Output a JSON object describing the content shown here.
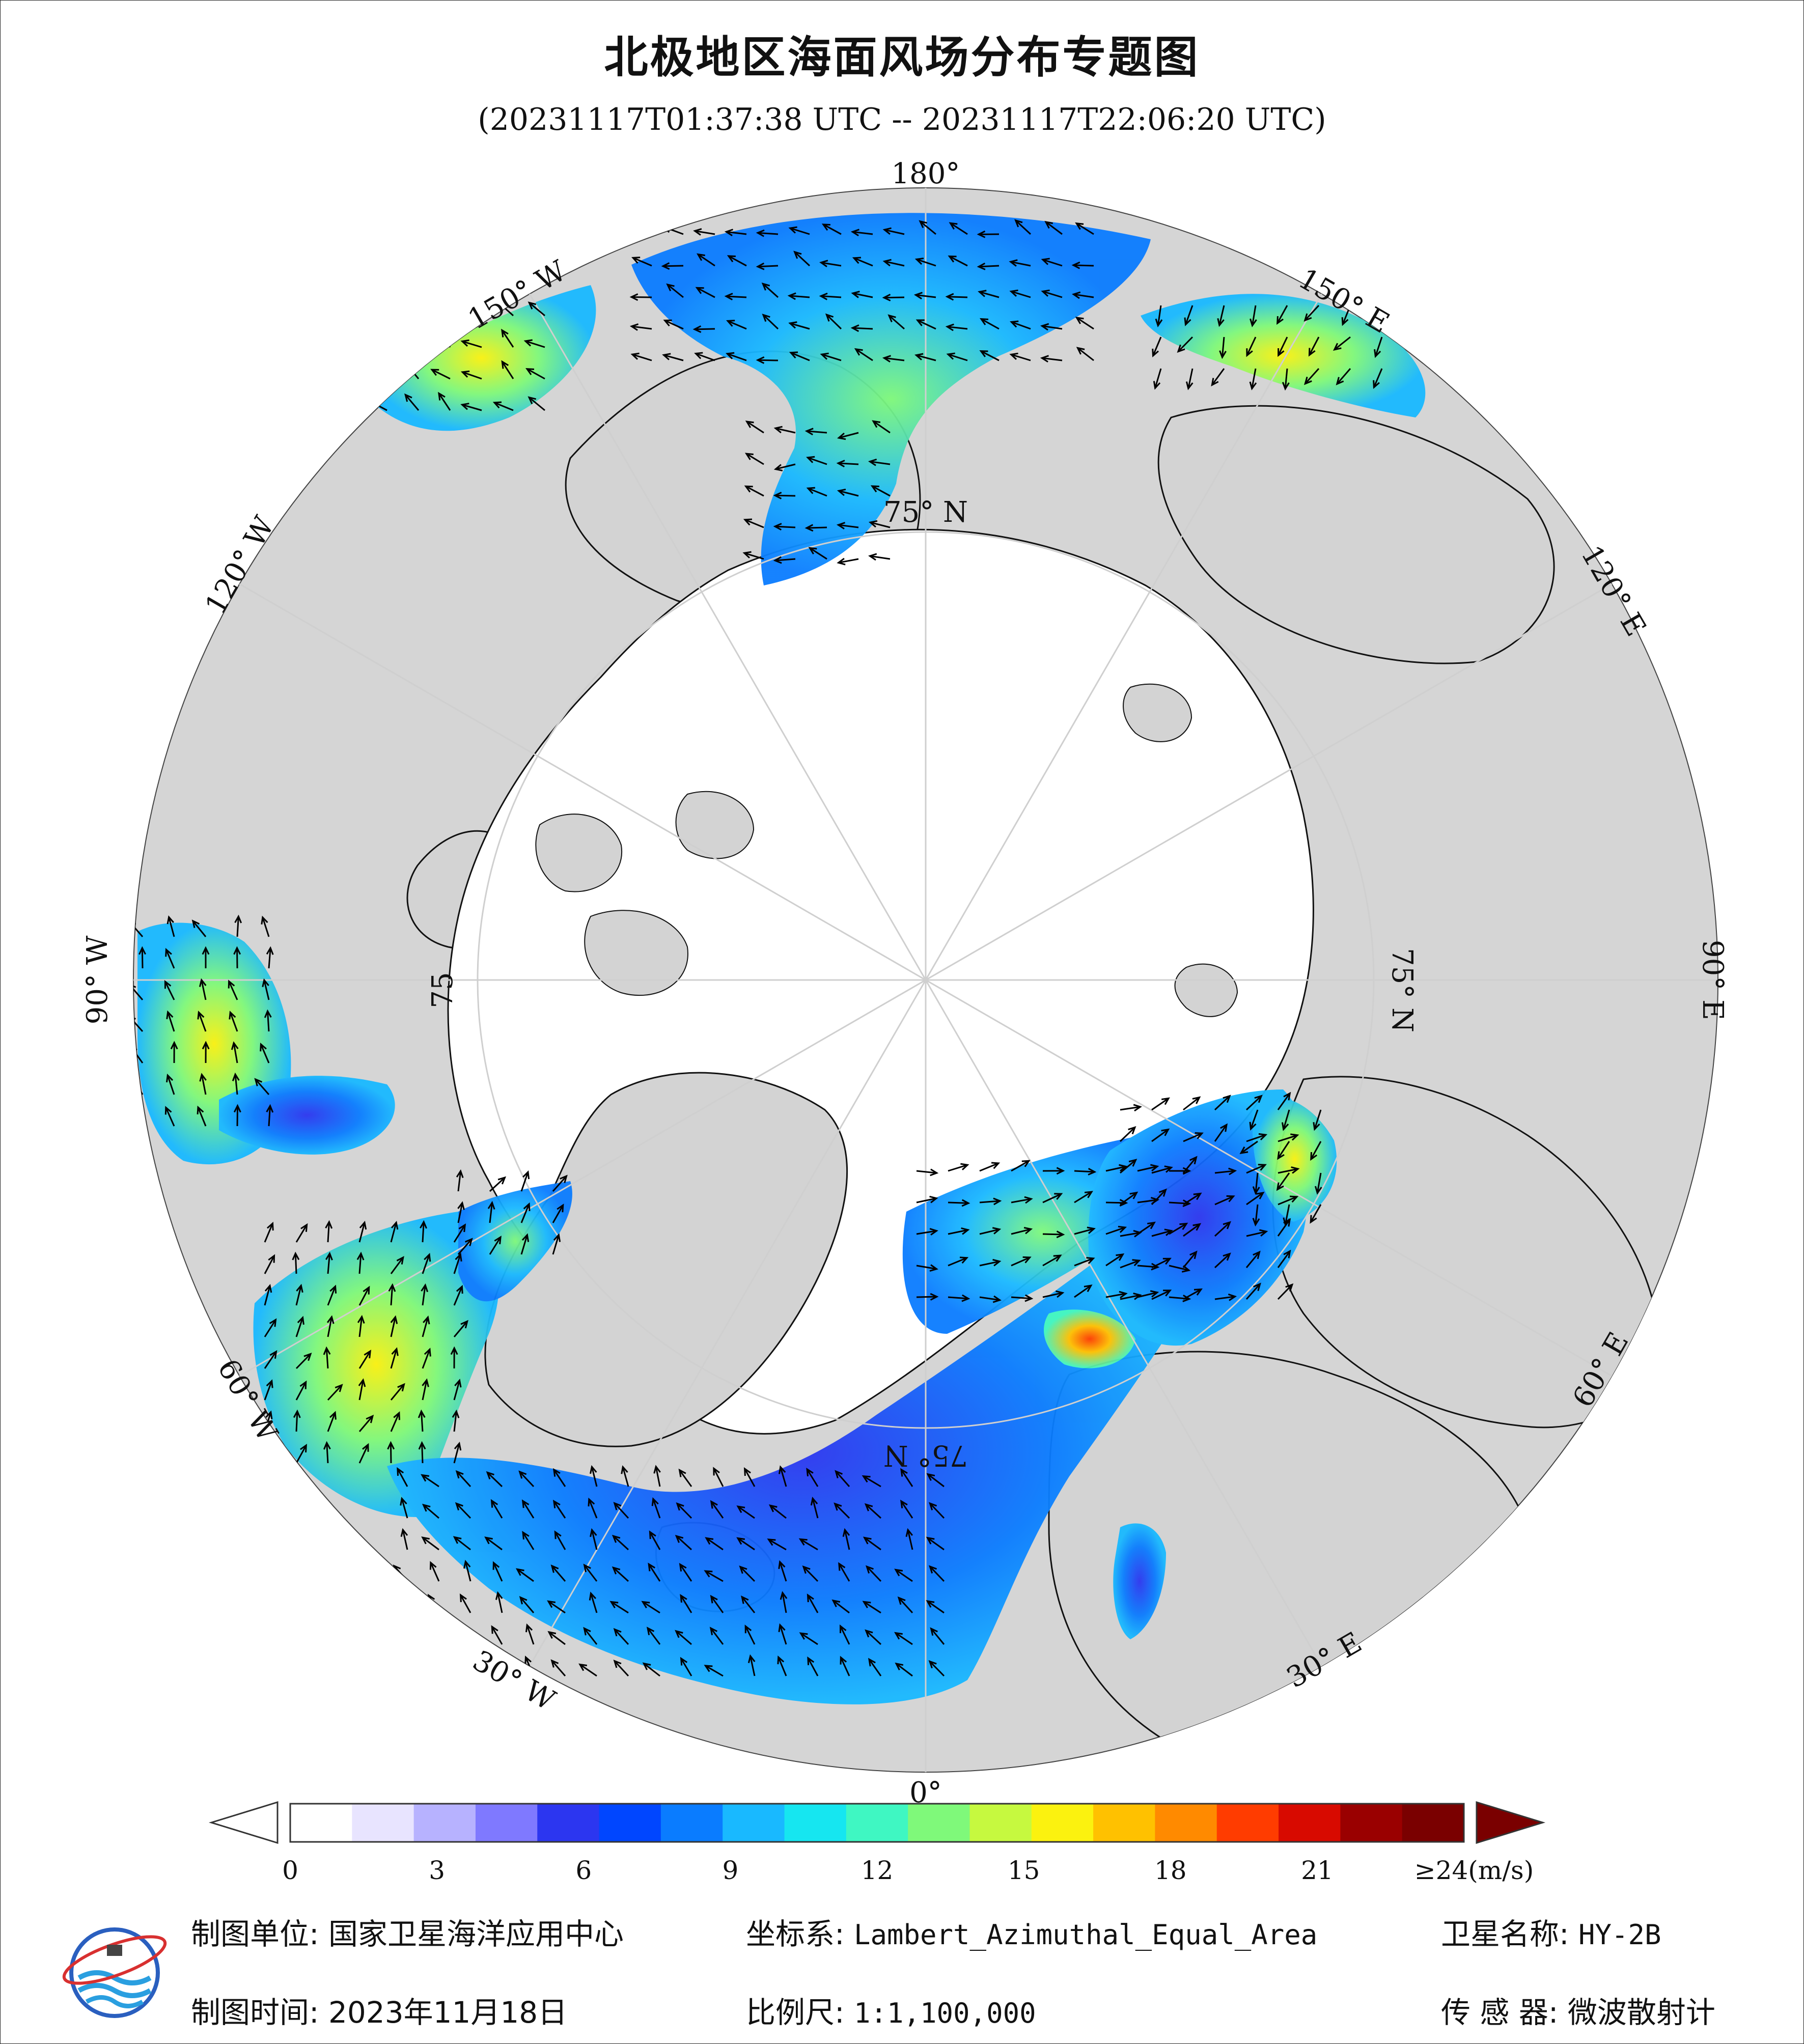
{
  "title": "北极地区海面风场分布专题图",
  "subtitle": "(20231117T01:37:38 UTC -- 20231117T22:06:20 UTC)",
  "map": {
    "longitude_labels": {
      "lon_180": "180°",
      "lon_0": "0°",
      "lon_150w": "150° W",
      "lon_120w": "120° W",
      "lon_90w": "90° W",
      "lon_60w": "60° W",
      "lon_30w": "30° W",
      "lon_150e": "150° E",
      "lon_120e": "120° E",
      "lon_90e": "90° E",
      "lon_60e": "60° E",
      "lon_30e": "30° E"
    },
    "latitude_labels": {
      "lat_top": "75° N",
      "lat_left": "75",
      "lat_right": "75° N",
      "lat_bottom": "75° N"
    },
    "colors": {
      "ocean_background": "#d5d5d5",
      "ice": "#ffffff",
      "land": "#d3d3d3",
      "coastline": "#111111",
      "wind_arrow": "#000000"
    },
    "wind_units": "m/s",
    "wind_speed_range": [
      0,
      24
    ]
  },
  "colorbar": {
    "ticks": [
      "0",
      "3",
      "6",
      "9",
      "12",
      "15",
      "18",
      "21",
      "≥24(m/s)"
    ],
    "colors": [
      "#ffffff",
      "#e8e4ff",
      "#b7b2ff",
      "#7f79ff",
      "#2c36f0",
      "#0046ff",
      "#0a7cff",
      "#19b9ff",
      "#16e6f0",
      "#3ff7c2",
      "#7ff97a",
      "#c6f93f",
      "#fbf20f",
      "#ffc100",
      "#ff8a00",
      "#ff3c00",
      "#d80a00",
      "#9a0000",
      "#7a0000"
    ]
  },
  "info": {
    "maker_label": "制图单位:",
    "maker_value": "国家卫星海洋应用中心",
    "date_label": "制图时间:",
    "date_value": "2023年11月18日",
    "coord_label": "坐标系:",
    "coord_value": "Lambert_Azimuthal_Equal_Area",
    "scale_label": "比例尺:",
    "scale_value": "1:1,100,000",
    "satellite_label": "卫星名称:",
    "satellite_value": "HY-2B",
    "sensor_label": "传 感 器:",
    "sensor_value": "微波散射计"
  }
}
